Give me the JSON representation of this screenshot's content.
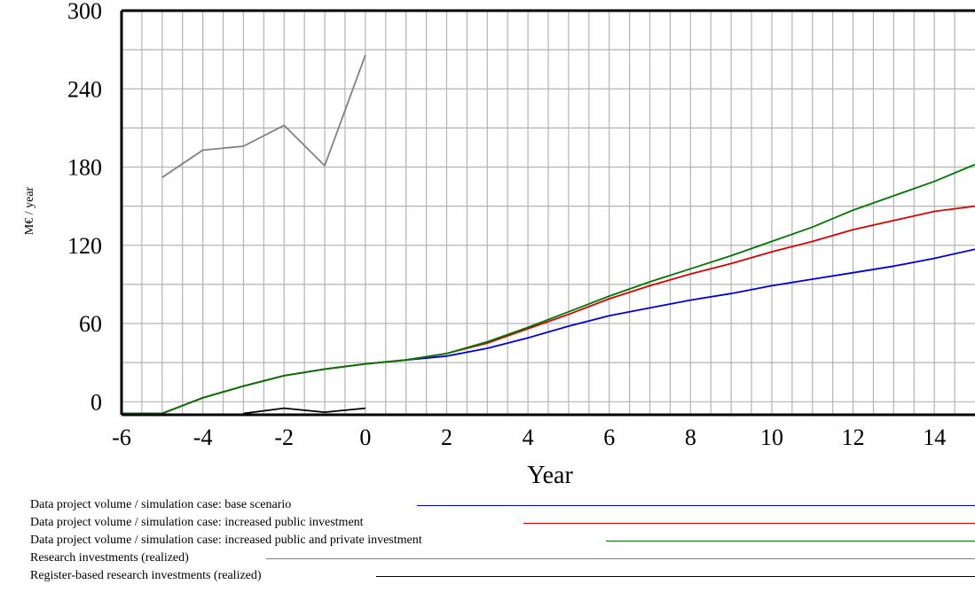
{
  "chart_data": {
    "type": "line",
    "title": "",
    "xlabel": "Year",
    "ylabel": "M€ / year",
    "xlim": [
      -6,
      15
    ],
    "ylim": [
      -10,
      300
    ],
    "x_ticks": [
      "-6",
      "-4",
      "-2",
      "0",
      "2",
      "4",
      "6",
      "8",
      "10",
      "12",
      "14"
    ],
    "y_ticks": [
      "0",
      "60",
      "120",
      "180",
      "240",
      "300"
    ],
    "grid": true,
    "legend_position": "bottom",
    "series": [
      {
        "name": "Data project volume / simulation case: base scenario",
        "color": "#0000dd",
        "x": [
          -6,
          -5,
          -4.5,
          -4,
          -3,
          -2,
          -1,
          0,
          1,
          2,
          3,
          4,
          5,
          6,
          7,
          8,
          9,
          10,
          11,
          12,
          13,
          14,
          15
        ],
        "y": [
          -9,
          -9,
          -3,
          3,
          12,
          20,
          25,
          29,
          32,
          35,
          41,
          49,
          58,
          66,
          72,
          78,
          83,
          89,
          94,
          99,
          104,
          110,
          117
        ]
      },
      {
        "name": "Data project volume / simulation case: increased public investment",
        "color": "#dd0000",
        "x": [
          -6,
          -5,
          -4.5,
          -4,
          -3,
          -2,
          -1,
          0,
          1,
          2,
          3,
          4,
          5,
          6,
          7,
          8,
          9,
          10,
          11,
          12,
          13,
          14,
          15
        ],
        "y": [
          -9,
          -9,
          -3,
          3,
          12,
          20,
          25,
          29,
          32,
          37,
          45,
          56,
          67,
          79,
          89,
          98,
          106,
          115,
          123,
          132,
          139,
          146,
          150
        ]
      },
      {
        "name": "Data project volume / simulation case: increased public and private investment",
        "color": "#007700",
        "x": [
          -6,
          -5,
          -4.5,
          -4,
          -3,
          -2,
          -1,
          0,
          1,
          2,
          3,
          4,
          5,
          6,
          7,
          8,
          9,
          10,
          11,
          12,
          13,
          14,
          15
        ],
        "y": [
          -9,
          -9,
          -3,
          3,
          12,
          20,
          25,
          29,
          32,
          37,
          46,
          57,
          69,
          81,
          92,
          102,
          112,
          123,
          134,
          147,
          158,
          169,
          182
        ]
      },
      {
        "name": "Research investments (realized)",
        "color": "#808080",
        "x": [
          -5,
          -4,
          -3,
          -2,
          -1,
          0
        ],
        "y": [
          172,
          193,
          196,
          212,
          181,
          266
        ]
      },
      {
        "name": "Register-based research investments (realized)",
        "color": "#000000",
        "x": [
          -3,
          -2,
          -1,
          0
        ],
        "y": [
          -9,
          -5,
          -8,
          -5
        ]
      }
    ]
  },
  "legend": {
    "items": [
      {
        "label": "Data project volume / simulation case: base scenario",
        "color": "#0000dd"
      },
      {
        "label": "Data project volume / simulation case: increased public investment",
        "color": "#dd0000"
      },
      {
        "label": "Data project volume / simulation case: increased public and private investment",
        "color": "#007700"
      },
      {
        "label": "Research investments (realized)",
        "color": "#808080"
      },
      {
        "label": "Register-based research investments (realized)",
        "color": "#000000"
      }
    ]
  }
}
